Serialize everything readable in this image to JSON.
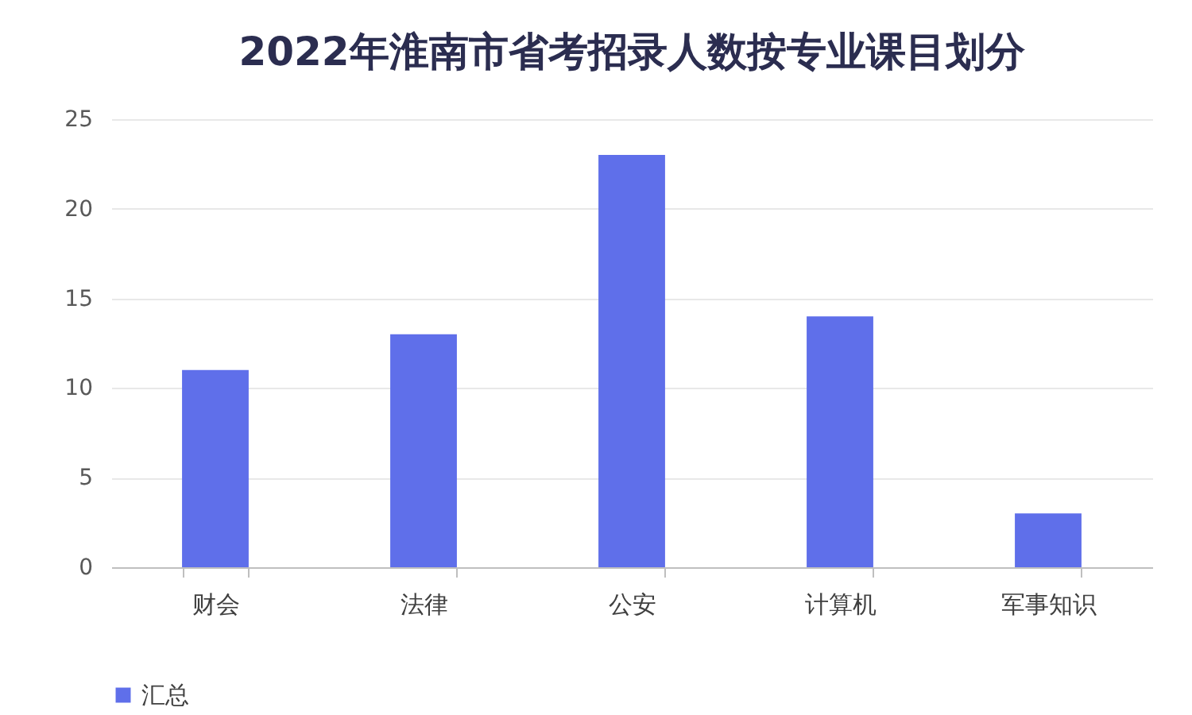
{
  "chart_data": {
    "type": "bar",
    "title": "2022年淮南市省考招录人数按专业课目划分",
    "categories": [
      "财会",
      "法律",
      "公安",
      "计算机",
      "军事知识"
    ],
    "series": [
      {
        "name": "汇总",
        "color": "#5f6fea",
        "values": [
          11,
          13,
          23,
          14,
          3
        ]
      }
    ],
    "ylim": [
      0,
      25
    ],
    "yticks": [
      0,
      5,
      10,
      15,
      20,
      25
    ],
    "grid": "y",
    "legend": "bottom"
  }
}
